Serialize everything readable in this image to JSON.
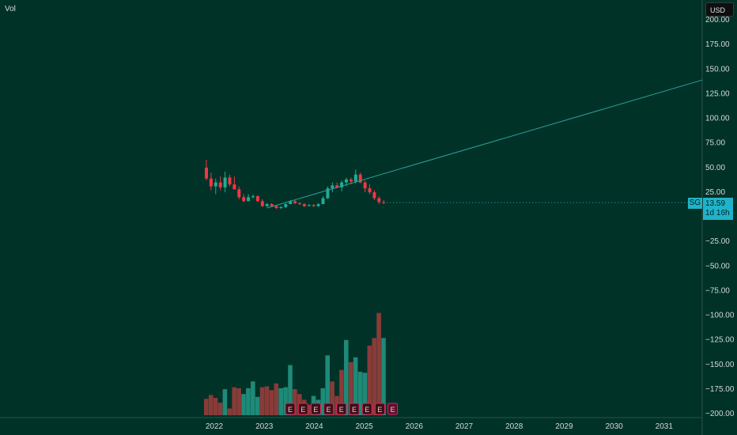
{
  "header": {
    "vol_label": "Vol",
    "currency_button": "USD"
  },
  "price_tag": {
    "symbol": "SG",
    "price": "13.59",
    "countdown": "1d 16h"
  },
  "colors": {
    "background": "#003228",
    "up": "#22ab94",
    "down": "#f23645",
    "vol_up": "#1e8a78",
    "vol_down": "#8a3b38",
    "earnings": "#e91e63",
    "trendline": "#2e9e9a"
  },
  "chart_data": {
    "type": "candlestick",
    "title": "",
    "y_axis": {
      "min": -200,
      "max": 200,
      "ticks": [
        -200,
        -175,
        -150,
        -125,
        -100,
        -75,
        -50,
        -25,
        25,
        50,
        75,
        100,
        125,
        150,
        175,
        200
      ],
      "tick_labels": [
        "−200.00",
        "−175.00",
        "−150.00",
        "−125.00",
        "−100.00",
        "−75.00",
        "−50.00",
        "−25.00",
        "25.00",
        "50.00",
        "75.00",
        "100.00",
        "125.00",
        "150.00",
        "175.00",
        "200.00"
      ]
    },
    "x_axis": {
      "labels": [
        "2022",
        "2023",
        "2024",
        "2025",
        "2026",
        "2027",
        "2028",
        "2029",
        "2030",
        "2031"
      ]
    },
    "candles": [
      {
        "o": 49,
        "h": 57,
        "l": 36,
        "c": 38
      },
      {
        "o": 38,
        "h": 44,
        "l": 26,
        "c": 30
      },
      {
        "o": 30,
        "h": 38,
        "l": 22,
        "c": 34
      },
      {
        "o": 34,
        "h": 40,
        "l": 26,
        "c": 29
      },
      {
        "o": 29,
        "h": 45,
        "l": 24,
        "c": 39
      },
      {
        "o": 39,
        "h": 42,
        "l": 30,
        "c": 32
      },
      {
        "o": 32,
        "h": 40,
        "l": 28,
        "c": 27
      },
      {
        "o": 27,
        "h": 30,
        "l": 17,
        "c": 19
      },
      {
        "o": 19,
        "h": 22,
        "l": 14,
        "c": 15
      },
      {
        "o": 15,
        "h": 22,
        "l": 15,
        "c": 19
      },
      {
        "o": 19,
        "h": 22,
        "l": 18,
        "c": 20
      },
      {
        "o": 20,
        "h": 21,
        "l": 14,
        "c": 15
      },
      {
        "o": 15,
        "h": 17,
        "l": 9,
        "c": 10
      },
      {
        "o": 10,
        "h": 13,
        "l": 9,
        "c": 12
      },
      {
        "o": 12,
        "h": 13,
        "l": 9,
        "c": 10
      },
      {
        "o": 10,
        "h": 11,
        "l": 7,
        "c": 8
      },
      {
        "o": 8,
        "h": 10,
        "l": 7,
        "c": 9
      },
      {
        "o": 9,
        "h": 13,
        "l": 8,
        "c": 12
      },
      {
        "o": 12,
        "h": 16,
        "l": 12,
        "c": 15
      },
      {
        "o": 15,
        "h": 16,
        "l": 12,
        "c": 13
      },
      {
        "o": 13,
        "h": 14,
        "l": 11,
        "c": 12
      },
      {
        "o": 12,
        "h": 13,
        "l": 9,
        "c": 10
      },
      {
        "o": 10,
        "h": 12,
        "l": 10,
        "c": 11
      },
      {
        "o": 11,
        "h": 12,
        "l": 9,
        "c": 10
      },
      {
        "o": 10,
        "h": 13,
        "l": 9,
        "c": 12
      },
      {
        "o": 12,
        "h": 20,
        "l": 12,
        "c": 18
      },
      {
        "o": 18,
        "h": 30,
        "l": 17,
        "c": 28
      },
      {
        "o": 28,
        "h": 34,
        "l": 24,
        "c": 31
      },
      {
        "o": 31,
        "h": 34,
        "l": 28,
        "c": 29
      },
      {
        "o": 29,
        "h": 36,
        "l": 25,
        "c": 34
      },
      {
        "o": 34,
        "h": 39,
        "l": 30,
        "c": 37
      },
      {
        "o": 37,
        "h": 39,
        "l": 32,
        "c": 35
      },
      {
        "o": 35,
        "h": 47,
        "l": 33,
        "c": 42
      },
      {
        "o": 42,
        "h": 44,
        "l": 33,
        "c": 34
      },
      {
        "o": 34,
        "h": 36,
        "l": 24,
        "c": 28
      },
      {
        "o": 28,
        "h": 32,
        "l": 22,
        "c": 24
      },
      {
        "o": 24,
        "h": 26,
        "l": 16,
        "c": 18
      },
      {
        "o": 18,
        "h": 20,
        "l": 12,
        "c": 14
      },
      {
        "o": 14,
        "h": 16,
        "l": 12,
        "c": 13.59
      }
    ],
    "volume": [
      {
        "v": 17,
        "up": false
      },
      {
        "v": 21,
        "up": false
      },
      {
        "v": 18,
        "up": false
      },
      {
        "v": 13,
        "up": false
      },
      {
        "v": 27,
        "up": true
      },
      {
        "v": 7,
        "up": false
      },
      {
        "v": 29,
        "up": false
      },
      {
        "v": 28,
        "up": false
      },
      {
        "v": 22,
        "up": true
      },
      {
        "v": 28,
        "up": true
      },
      {
        "v": 35,
        "up": true
      },
      {
        "v": 19,
        "up": true
      },
      {
        "v": 29,
        "up": false
      },
      {
        "v": 30,
        "up": false
      },
      {
        "v": 26,
        "up": false
      },
      {
        "v": 33,
        "up": false
      },
      {
        "v": 28,
        "up": true
      },
      {
        "v": 29,
        "up": true
      },
      {
        "v": 52,
        "up": true
      },
      {
        "v": 27,
        "up": false
      },
      {
        "v": 22,
        "up": false
      },
      {
        "v": 16,
        "up": false
      },
      {
        "v": 11,
        "up": false
      },
      {
        "v": 20,
        "up": true
      },
      {
        "v": 16,
        "up": true
      },
      {
        "v": 28,
        "up": true
      },
      {
        "v": 62,
        "up": true
      },
      {
        "v": 35,
        "up": false
      },
      {
        "v": 20,
        "up": false
      },
      {
        "v": 47,
        "up": false
      },
      {
        "v": 78,
        "up": true
      },
      {
        "v": 55,
        "up": false
      },
      {
        "v": 60,
        "up": true
      },
      {
        "v": 45,
        "up": true
      },
      {
        "v": 44,
        "up": true
      },
      {
        "v": 72,
        "up": false
      },
      {
        "v": 80,
        "up": false
      },
      {
        "v": 106,
        "up": false
      },
      {
        "v": 80,
        "up": true
      }
    ],
    "earnings_markers": [
      "E",
      "E",
      "E",
      "E",
      "E",
      "E",
      "E",
      "E",
      "E"
    ],
    "trendline": {
      "from": {
        "index": 13,
        "value": 8
      },
      "to_edge_value": 138
    }
  }
}
